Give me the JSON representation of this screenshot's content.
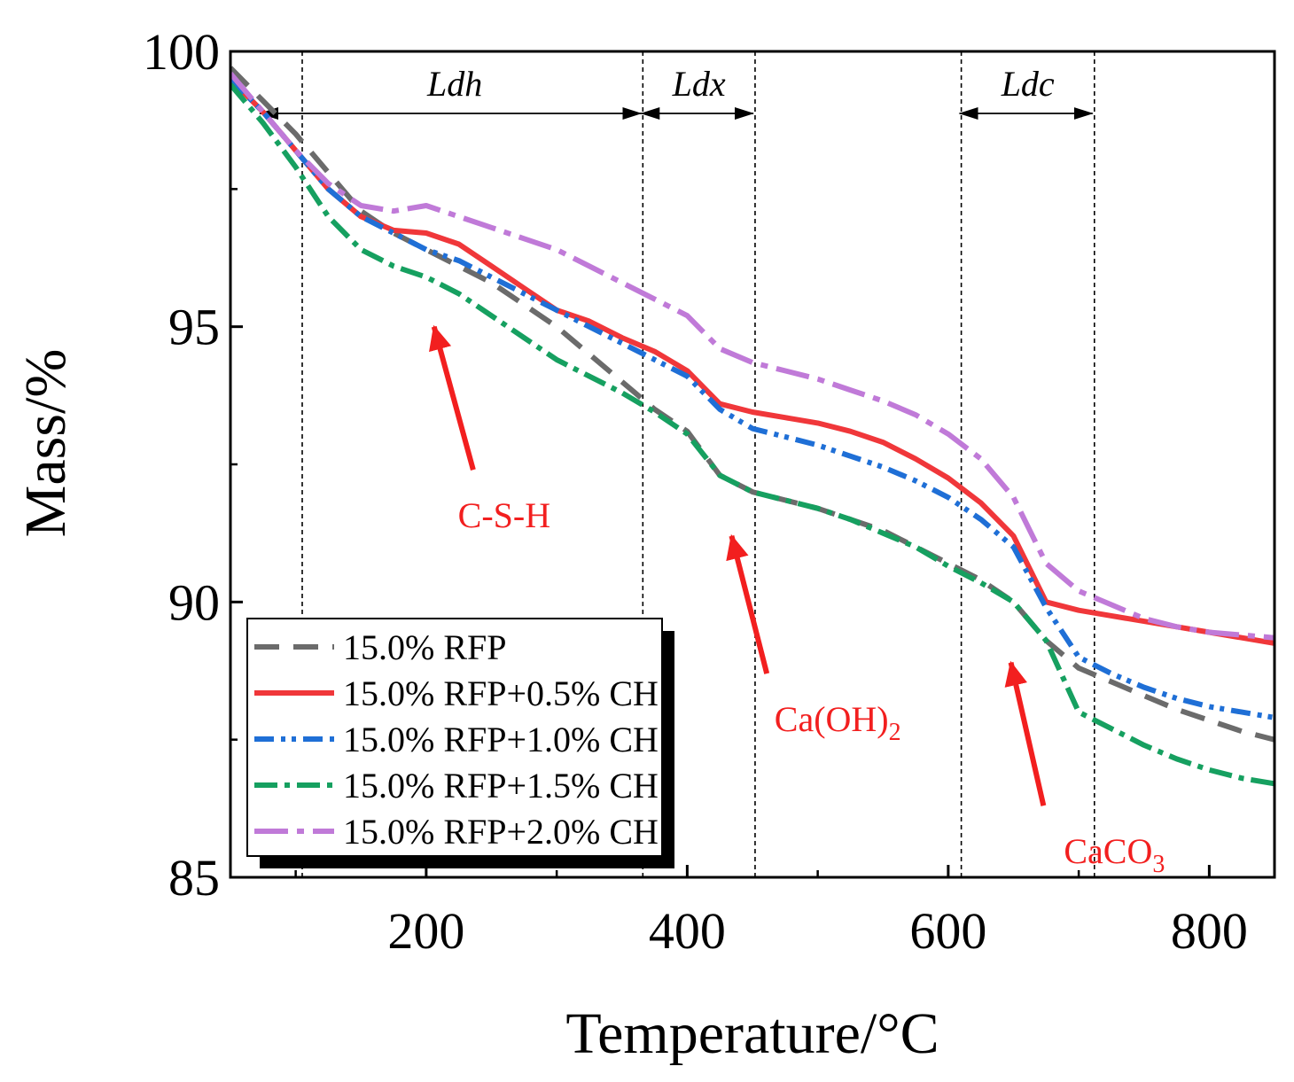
{
  "chart_data": {
    "type": "line",
    "xlabel": "Temperature/°C",
    "ylabel": "Mass/%",
    "xlim": [
      50,
      850
    ],
    "ylim": [
      85,
      100
    ],
    "xticks": [
      200,
      400,
      600,
      800
    ],
    "yticks": [
      85,
      90,
      95,
      100
    ],
    "grid": false,
    "legend_position": "bottom-left",
    "regions": [
      {
        "label": "Ldh",
        "start": 105,
        "end": 366
      },
      {
        "label": "Ldx",
        "start": 366,
        "end": 452
      },
      {
        "label": "Ldc",
        "start": 610,
        "end": 712
      }
    ],
    "annotations": [
      {
        "label": "C-S-H",
        "tail_x": 236,
        "tail_y": 92.4,
        "head_x": 206,
        "head_y": 95.0
      },
      {
        "label": "Ca(OH)",
        "subscript": "2",
        "tail_x": 461,
        "tail_y": 88.7,
        "head_x": 434,
        "head_y": 91.2
      },
      {
        "label": "CaCO",
        "subscript": "3",
        "tail_x": 673,
        "tail_y": 86.3,
        "head_x": 648,
        "head_y": 88.9
      }
    ],
    "series": [
      {
        "name": "15.0% RFP",
        "color": "#6b6b6b",
        "style": "dash",
        "x": [
          50,
          75,
          100,
          125,
          150,
          175,
          200,
          225,
          250,
          275,
          300,
          325,
          350,
          375,
          400,
          425,
          450,
          475,
          500,
          525,
          550,
          575,
          600,
          625,
          650,
          675,
          700,
          725,
          750,
          775,
          800,
          825,
          850
        ],
        "y": [
          99.7,
          99.1,
          98.5,
          97.8,
          97.1,
          96.7,
          96.4,
          96.1,
          95.8,
          95.4,
          95.0,
          94.5,
          94.0,
          93.5,
          93.1,
          92.3,
          92.0,
          91.85,
          91.7,
          91.5,
          91.3,
          91.0,
          90.7,
          90.4,
          90.0,
          89.3,
          88.8,
          88.55,
          88.3,
          88.05,
          87.85,
          87.65,
          87.5
        ]
      },
      {
        "name": "15.0% RFP+0.5% CH",
        "color": "#f0373a",
        "style": "solid",
        "x": [
          50,
          75,
          100,
          125,
          150,
          175,
          200,
          225,
          250,
          275,
          300,
          325,
          350,
          375,
          400,
          425,
          450,
          475,
          500,
          525,
          550,
          575,
          600,
          625,
          650,
          675,
          700,
          725,
          750,
          775,
          800,
          825,
          850
        ],
        "y": [
          99.5,
          98.9,
          98.2,
          97.5,
          97.0,
          96.75,
          96.7,
          96.5,
          96.1,
          95.7,
          95.3,
          95.1,
          94.8,
          94.55,
          94.2,
          93.6,
          93.45,
          93.35,
          93.25,
          93.1,
          92.9,
          92.6,
          92.25,
          91.8,
          91.2,
          90.0,
          89.85,
          89.75,
          89.65,
          89.55,
          89.45,
          89.35,
          89.25
        ]
      },
      {
        "name": "15.0% RFP+1.0% CH",
        "color": "#1f6fd6",
        "style": "dashdotdot",
        "x": [
          50,
          75,
          100,
          125,
          150,
          175,
          200,
          225,
          250,
          275,
          300,
          325,
          350,
          375,
          400,
          425,
          450,
          475,
          500,
          525,
          550,
          575,
          600,
          625,
          650,
          675,
          700,
          725,
          750,
          775,
          800,
          825,
          850
        ],
        "y": [
          99.5,
          98.9,
          98.2,
          97.5,
          97.0,
          96.7,
          96.4,
          96.2,
          95.9,
          95.6,
          95.3,
          95.0,
          94.7,
          94.4,
          94.1,
          93.5,
          93.15,
          93.0,
          92.85,
          92.65,
          92.45,
          92.2,
          91.9,
          91.5,
          91.0,
          89.9,
          89.0,
          88.7,
          88.45,
          88.25,
          88.1,
          88.0,
          87.9
        ]
      },
      {
        "name": "15.0% RFP+1.5% CH",
        "color": "#16a060",
        "style": "dashdot",
        "x": [
          50,
          75,
          100,
          125,
          150,
          175,
          200,
          225,
          250,
          275,
          300,
          325,
          350,
          375,
          400,
          425,
          450,
          475,
          500,
          525,
          550,
          575,
          600,
          625,
          650,
          675,
          700,
          725,
          750,
          775,
          800,
          825,
          850
        ],
        "y": [
          99.4,
          98.7,
          97.9,
          97.0,
          96.4,
          96.1,
          95.9,
          95.6,
          95.2,
          94.8,
          94.4,
          94.1,
          93.8,
          93.45,
          93.05,
          92.3,
          92.0,
          91.85,
          91.7,
          91.5,
          91.25,
          91.0,
          90.65,
          90.35,
          90.0,
          89.3,
          88.0,
          87.7,
          87.4,
          87.15,
          86.95,
          86.8,
          86.7
        ]
      },
      {
        "name": "15.0% RFP+2.0% CH",
        "color": "#c07ad8",
        "style": "longdashdot",
        "x": [
          50,
          75,
          100,
          125,
          150,
          175,
          200,
          225,
          250,
          275,
          300,
          325,
          350,
          375,
          400,
          425,
          450,
          475,
          500,
          525,
          550,
          575,
          600,
          625,
          650,
          675,
          700,
          725,
          750,
          775,
          800,
          825,
          850
        ],
        "y": [
          99.6,
          98.9,
          98.2,
          97.6,
          97.2,
          97.1,
          97.2,
          97.0,
          96.8,
          96.6,
          96.4,
          96.1,
          95.8,
          95.5,
          95.2,
          94.6,
          94.35,
          94.2,
          94.05,
          93.85,
          93.65,
          93.4,
          93.05,
          92.6,
          91.9,
          90.7,
          90.2,
          89.95,
          89.7,
          89.55,
          89.45,
          89.4,
          89.35
        ]
      }
    ]
  }
}
